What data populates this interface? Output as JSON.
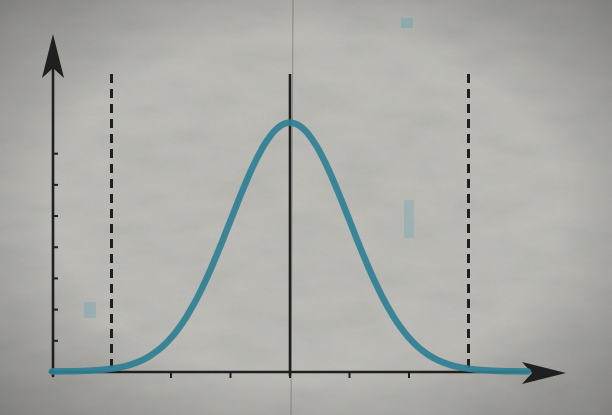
{
  "chart_data": {
    "type": "line",
    "title": "",
    "xlabel": "",
    "ylabel": "",
    "curve": "normal-distribution",
    "mean": 0,
    "std_dev": 1,
    "x_range": [
      -4,
      4
    ],
    "y_range": [
      0,
      0.42
    ],
    "peak": {
      "x": 0,
      "y": 0.399
    },
    "dashed_bounds": [
      -3,
      3
    ],
    "center_line": 0,
    "x_ticks": [
      -2,
      -1,
      0,
      1,
      2
    ],
    "y_ticks": [
      0.05,
      0.1,
      0.15,
      0.2,
      0.25,
      0.3,
      0.35
    ],
    "tick_labels_shown": false,
    "grid": false,
    "legend": "none",
    "arrow_axes": true
  },
  "colors": {
    "curve": "#2f7f94",
    "axes": "#1f1f1f",
    "background": "#b9b8b3",
    "texture_dark": "#8f8e89",
    "texture_light": "#d6d5d0",
    "speck": "#6fa6b2"
  },
  "icons": {
    "y_arrow": "arrowhead-up-icon",
    "x_arrow": "arrowhead-right-icon"
  }
}
